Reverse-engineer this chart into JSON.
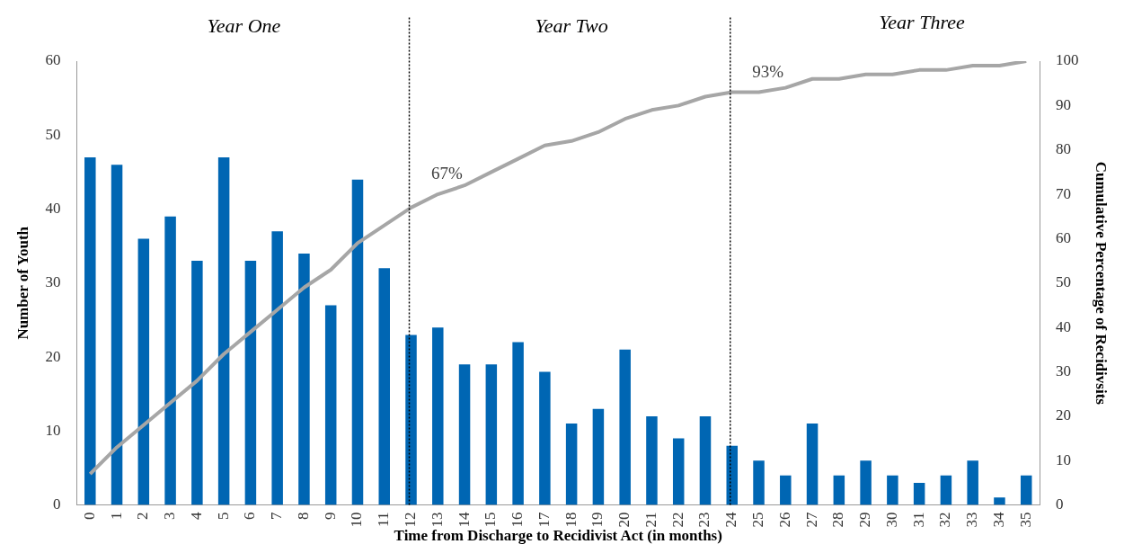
{
  "chart_data": {
    "type": "bar",
    "xlabel": "Time from Discharge to Recidivist Act (in months)",
    "ylabel": "Number of Youth",
    "y2label": "Cumulative Percentage of Recidivsits",
    "categories": [
      "0",
      "1",
      "2",
      "3",
      "4",
      "5",
      "6",
      "7",
      "8",
      "9",
      "10",
      "11",
      "12",
      "13",
      "14",
      "15",
      "16",
      "17",
      "18",
      "19",
      "20",
      "21",
      "22",
      "23",
      "24",
      "25",
      "26",
      "27",
      "28",
      "29",
      "30",
      "31",
      "32",
      "33",
      "34",
      "35"
    ],
    "series": [
      {
        "color": "#0066b3",
        "values": [
          47,
          46,
          36,
          39,
          33,
          47,
          33,
          37,
          34,
          27,
          44,
          32,
          23,
          24,
          19,
          19,
          22,
          18,
          11,
          13,
          21,
          12,
          9,
          12,
          8,
          6,
          4,
          11,
          4,
          6,
          4,
          3,
          4,
          6,
          1,
          4
        ]
      },
      {
        "type": "line",
        "axis": "y2",
        "color": "#a6a6a6",
        "values": [
          7,
          13,
          18,
          23,
          28,
          34,
          39,
          44,
          49,
          53,
          59,
          63,
          67,
          70,
          72,
          75,
          78,
          81,
          82,
          84,
          87,
          89,
          90,
          92,
          93,
          93,
          94,
          96,
          96,
          97,
          97,
          98,
          98,
          99,
          99,
          100
        ]
      }
    ],
    "ylim": [
      0,
      60
    ],
    "yticks": [
      0,
      10,
      20,
      30,
      40,
      50,
      60
    ],
    "y2lim": [
      0,
      100
    ],
    "y2ticks": [
      0,
      10,
      20,
      30,
      40,
      50,
      60,
      70,
      80,
      90,
      100
    ],
    "ref_lines": [
      {
        "axis": "x",
        "value": "12",
        "color": "#000000",
        "line_style": "dotted"
      },
      {
        "axis": "x",
        "value": "24",
        "color": "#000000",
        "line_style": "dotted"
      }
    ],
    "annotations": [
      "Year One",
      "Year Two",
      "Year Three",
      "67%",
      "93%"
    ],
    "grid": false,
    "legend": false,
    "marker": "none",
    "line_style": "solid"
  }
}
